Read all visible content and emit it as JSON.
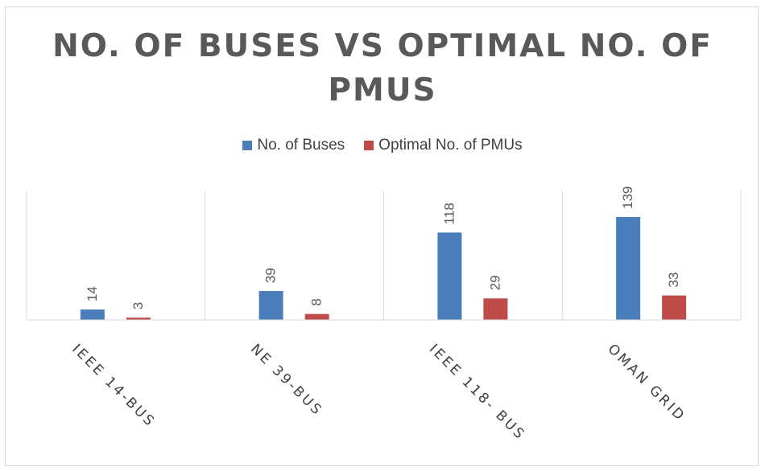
{
  "chart_data": {
    "type": "bar",
    "title": "NO. OF BUSES VS OPTIMAL NO. OF PMUS",
    "categories": [
      "IEEE 14-BUS",
      "NE 39-BUS",
      "IEEE 118- BUS",
      "OMAN GRID"
    ],
    "series": [
      {
        "name": "No. of Buses",
        "values": [
          14,
          39,
          118,
          139
        ],
        "color": "#4a7ebb"
      },
      {
        "name": "Optimal No. of PMUs",
        "values": [
          3,
          8,
          29,
          33
        ],
        "color": "#be4b48"
      }
    ],
    "xlabel": "",
    "ylabel": "",
    "ylim": [
      0,
      175
    ],
    "grid": "vertical category separators",
    "legend_position": "top",
    "data_labels": true
  }
}
